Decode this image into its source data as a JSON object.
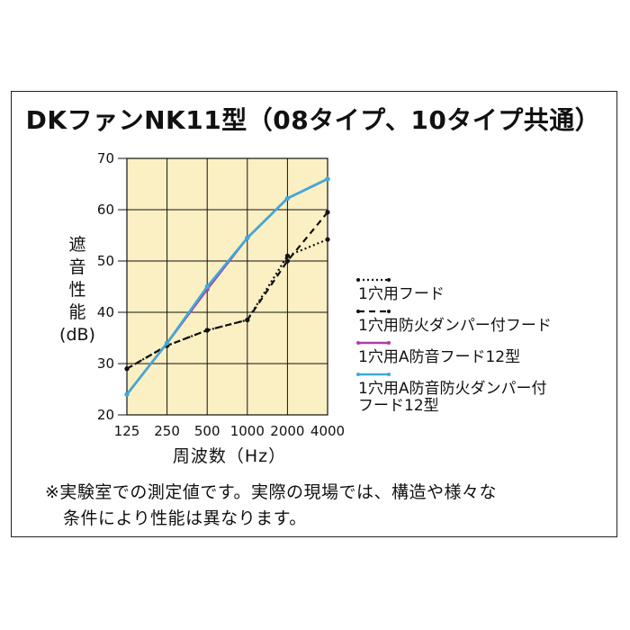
{
  "chart_data": {
    "type": "line",
    "title": "DKファンNK11型（08タイプ、10タイプ共通）",
    "xlabel": "周波数（Hz）",
    "ylabel_lines": [
      "遮",
      "音",
      "性",
      "能",
      "(dB)"
    ],
    "categories": [
      "125",
      "250",
      "500",
      "1000",
      "2000",
      "4000"
    ],
    "yticks": [
      20,
      30,
      40,
      50,
      60,
      70
    ],
    "ylim": [
      20,
      70
    ],
    "grid": true,
    "plot_background": "#fbf0c4",
    "legend_position": "right",
    "series": [
      {
        "name": "1穴用フード",
        "color": "#111111",
        "style": "dotted",
        "values": [
          29,
          33.5,
          36.5,
          38.5,
          51,
          54.2
        ]
      },
      {
        "name": "1穴用防火ダンパー付フード",
        "color": "#111111",
        "style": "dashed",
        "values": [
          29,
          33.5,
          36.5,
          38.5,
          50,
          59.5
        ]
      },
      {
        "name": "1穴用A防音フード12型",
        "color": "#b23aa8",
        "style": "solid",
        "values": [
          24,
          34,
          44.5,
          54.5,
          62.2,
          66
        ]
      },
      {
        "name": "1穴用A防音防火ダンパー付\nフード12型",
        "color": "#3fa9d8",
        "style": "solid",
        "values": [
          24,
          34,
          45,
          54.5,
          62.2,
          66
        ]
      }
    ]
  },
  "note": {
    "line1": "※実験室での測定値です。実際の現場では、構造や様々な",
    "line2": "条件により性能は異なります。"
  }
}
